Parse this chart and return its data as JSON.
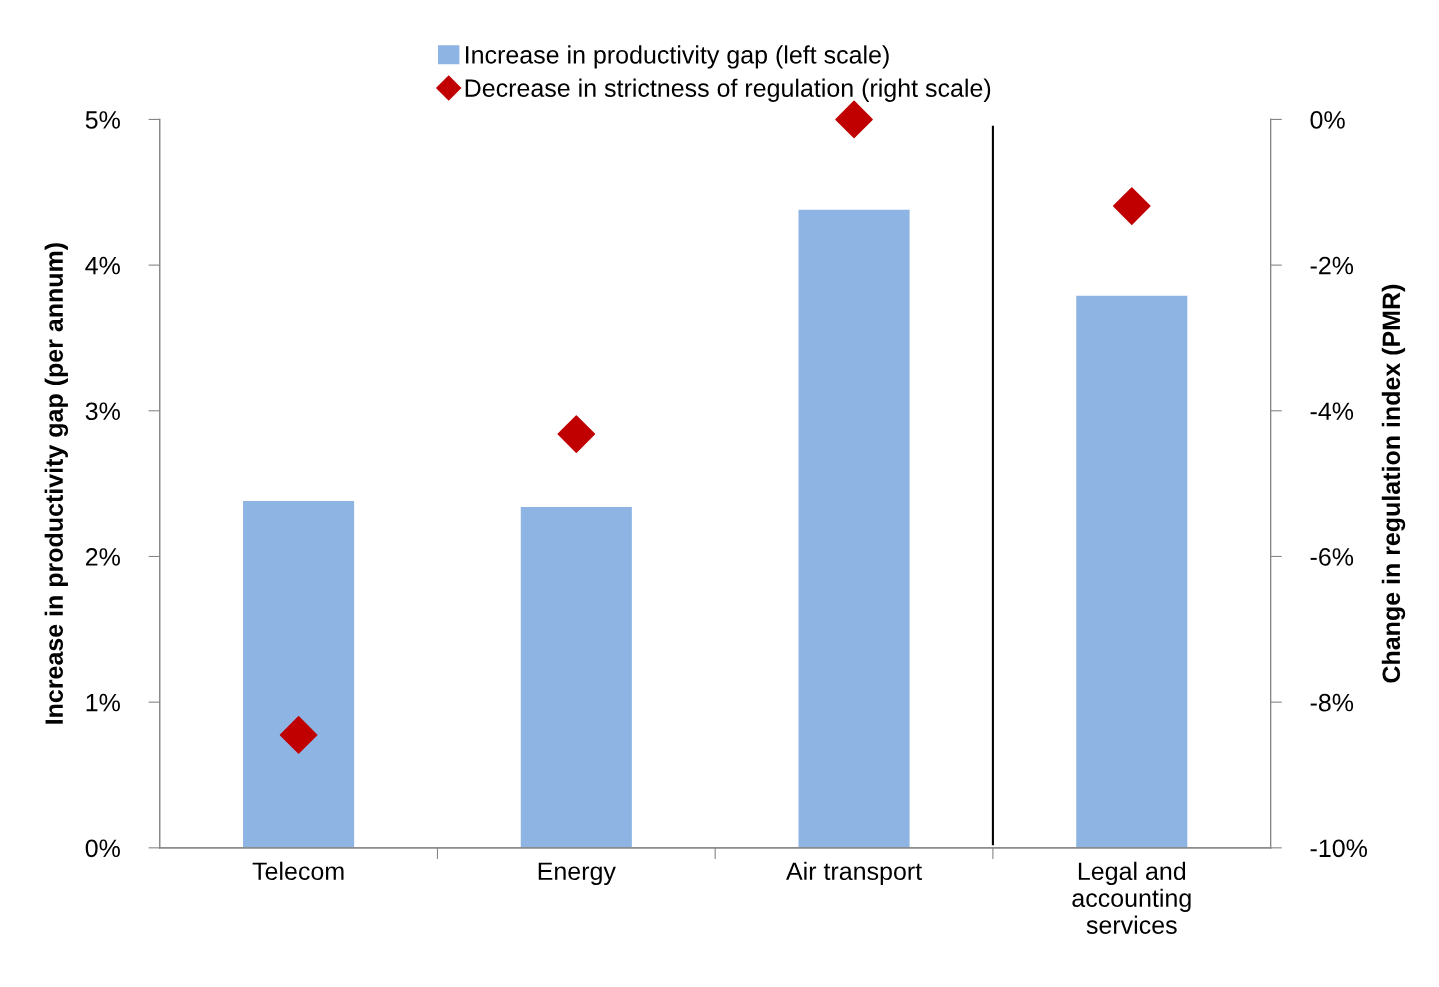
{
  "chart_data": {
    "type": "bar",
    "ylabel": "Increase in productivity gap (per annum)",
    "y2label": "Change in regulation index (PMR)",
    "categories": [
      "Telecom",
      "Energy",
      "Air transport",
      "Legal and\naccounting\nservices"
    ],
    "series": [
      {
        "name": "Increase in productivity gap (left scale)",
        "color": "#8eb4e3",
        "values": [
          2.38,
          2.34,
          4.38,
          3.79
        ]
      },
      {
        "name": "Decrease in strictness of regulation (right scale)",
        "type": "scatter",
        "axis": "y2",
        "marker": "diamond",
        "color": "#c00000",
        "values": [
          -8.45,
          -4.32,
          0,
          -1.19
        ]
      }
    ],
    "ylim": [
      0,
      5
    ],
    "yticks": [
      {
        "value": 0,
        "label": "0%"
      },
      {
        "value": 1,
        "label": "1%"
      },
      {
        "value": 2,
        "label": "2%"
      },
      {
        "value": 3,
        "label": "3%"
      },
      {
        "value": 4,
        "label": "4%"
      },
      {
        "value": 5,
        "label": "5%"
      }
    ],
    "y2lim": [
      -10,
      0
    ],
    "y2ticks": [
      {
        "value": -10,
        "label": "-10%"
      },
      {
        "value": -8,
        "label": "-8%"
      },
      {
        "value": -6,
        "label": "-6%"
      },
      {
        "value": -4,
        "label": "-4%"
      },
      {
        "value": -2,
        "label": "-2%"
      },
      {
        "value": 0,
        "label": "0%"
      }
    ],
    "legend": "top",
    "grid": false
  }
}
